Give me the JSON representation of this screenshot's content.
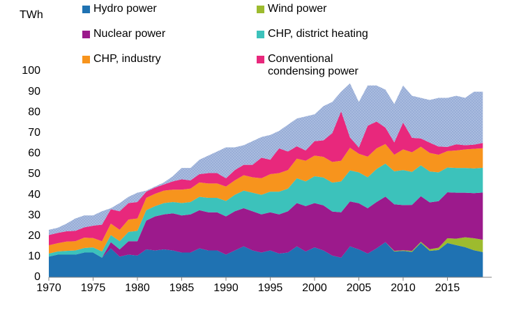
{
  "chart_data": {
    "type": "stacked_area",
    "y_label": "TWh",
    "x": [
      1970,
      1971,
      1972,
      1973,
      1974,
      1975,
      1976,
      1977,
      1978,
      1979,
      1980,
      1981,
      1982,
      1983,
      1984,
      1985,
      1986,
      1987,
      1988,
      1989,
      1990,
      1991,
      1992,
      1993,
      1994,
      1995,
      1996,
      1997,
      1998,
      1999,
      2000,
      2001,
      2002,
      2003,
      2004,
      2005,
      2006,
      2007,
      2008,
      2009,
      2010,
      2011,
      2012,
      2013,
      2014,
      2015,
      2016,
      2017,
      2018,
      2019
    ],
    "series": [
      {
        "name": "Hydro power",
        "color": "#1f72b2",
        "values": [
          10,
          11,
          11,
          11,
          12,
          12,
          9.5,
          14,
          10,
          11,
          10.5,
          13.5,
          13,
          13.5,
          13,
          12,
          12,
          14,
          13,
          13,
          11,
          13,
          15,
          13,
          12,
          13,
          11.5,
          12,
          15,
          12.5,
          14.5,
          13,
          10.5,
          9.5,
          15,
          13.5,
          11.5,
          14,
          17,
          12.5,
          12.8,
          12.3,
          16.7,
          12.8,
          13.2,
          16.6,
          15.6,
          14.6,
          13.1,
          12.2
        ]
      },
      {
        "name": "Wind power",
        "color": "#9dbb2e",
        "values": [
          0,
          0,
          0,
          0,
          0,
          0,
          0,
          0,
          0,
          0,
          0,
          0,
          0,
          0,
          0,
          0,
          0,
          0,
          0,
          0,
          0,
          0,
          0,
          0,
          0,
          0,
          0,
          0,
          0,
          0,
          0,
          0,
          0,
          0,
          0,
          0,
          0,
          0,
          0,
          0.3,
          0.3,
          0.5,
          0.5,
          0.8,
          1.1,
          2.3,
          3.1,
          4.8,
          5.8,
          6
        ]
      },
      {
        "name": "Nuclear power",
        "color": "#9c1a8c",
        "values": [
          0,
          0,
          0,
          0,
          0,
          0,
          0,
          3,
          3.5,
          6.5,
          7,
          14,
          16.5,
          17,
          18,
          18,
          18.5,
          18.5,
          18.5,
          18.5,
          18.5,
          19,
          18.5,
          19,
          18.5,
          18.5,
          19,
          20,
          21,
          22,
          21.5,
          21.9,
          21.4,
          22,
          21.8,
          22.4,
          22,
          22.5,
          22.1,
          22.6,
          21.9,
          22.3,
          22.1,
          22.7,
          22.6,
          22.3,
          22.3,
          21.6,
          21.9,
          22.9
        ]
      },
      {
        "name": "CHP, district heating",
        "color": "#3cc2bb",
        "values": [
          1.5,
          1.5,
          1.8,
          2,
          2.2,
          2.5,
          3,
          3.5,
          4,
          4.5,
          5,
          5,
          5,
          5.5,
          5.5,
          6,
          6,
          6.5,
          7,
          7,
          7.5,
          8,
          8.5,
          9,
          9.5,
          10,
          11,
          11,
          12,
          12,
          13,
          13.5,
          14,
          15,
          15,
          15,
          15,
          16,
          16,
          16,
          17,
          16,
          15,
          15,
          14,
          12,
          12,
          12,
          12,
          12
        ]
      },
      {
        "name": "CHP, industry",
        "color": "#f7941d",
        "values": [
          4,
          4,
          4.5,
          4.5,
          5,
          4.5,
          5,
          5.5,
          5.5,
          6,
          6,
          6,
          6,
          6,
          6,
          6.5,
          6.5,
          7,
          7,
          7,
          7,
          7,
          7.5,
          7.5,
          8,
          8.5,
          9,
          9,
          9.5,
          10,
          10,
          10,
          10,
          10,
          11,
          9,
          10,
          10,
          9.5,
          8,
          10,
          9.5,
          9,
          9,
          8.5,
          8,
          8.5,
          9,
          9.5,
          9.5
        ]
      },
      {
        "name": "Conventional condensing power",
        "color": "#e8287c",
        "values": [
          5,
          5,
          5,
          5,
          5,
          6,
          8,
          7,
          9,
          8,
          8,
          3,
          3,
          3,
          4,
          5,
          4,
          4,
          5,
          5,
          4,
          5,
          5,
          6,
          10,
          7,
          12,
          9,
          6,
          5,
          7,
          8,
          14,
          24,
          5,
          3,
          15,
          13,
          8,
          6,
          13,
          7,
          4,
          5,
          4,
          2,
          3,
          2,
          2,
          2.5
        ]
      },
      {
        "color": "#a9bcdf",
        "values": [
          2.5,
          2.5,
          3.7,
          6,
          5.8,
          5,
          6.5,
          0.5,
          4,
          3,
          4.5,
          0.5,
          0.5,
          1,
          2.5,
          5.5,
          6,
          7,
          8.5,
          10.5,
          15,
          11,
          9.5,
          11.5,
          10,
          12,
          8.5,
          13,
          13.5,
          16.5,
          13,
          16.6,
          15.1,
          9.5,
          26.2,
          22.1,
          19.5,
          17.5,
          18.4,
          18.6,
          18,
          20.4,
          19.7,
          20.7,
          23.6,
          23.8,
          23.5,
          23,
          25.7,
          24.9
        ]
      }
    ],
    "xlim": [
      1970,
      2020
    ],
    "xticks": [
      1970,
      1975,
      1980,
      1985,
      1990,
      1995,
      2000,
      2005,
      2010,
      2015
    ],
    "ylim": [
      0,
      100
    ],
    "yticks": [
      0,
      10,
      20,
      30,
      40,
      50,
      60,
      70,
      80,
      90,
      100
    ],
    "grid": false
  }
}
